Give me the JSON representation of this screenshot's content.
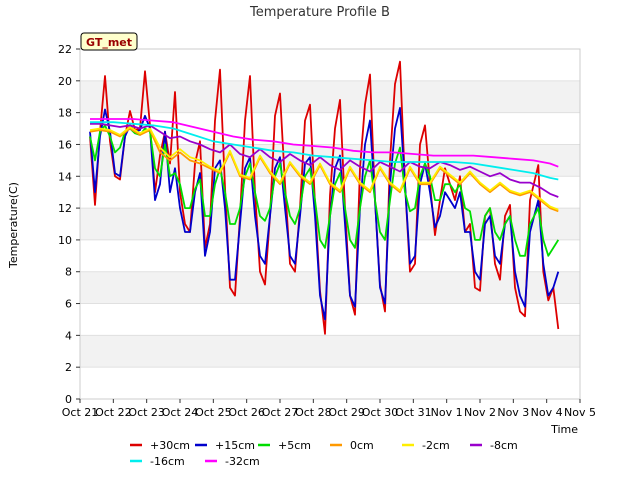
{
  "chart_data": {
    "type": "line",
    "title": "Temperature Profile B",
    "xlabel": "Time",
    "ylabel": "Temperature(C)",
    "site_tag": "GT_met",
    "xlim": [
      0,
      15
    ],
    "ylim": [
      0,
      22
    ],
    "x_ticks": [
      {
        "x": 0,
        "label": "Oct 21"
      },
      {
        "x": 1,
        "label": "Oct 22"
      },
      {
        "x": 2,
        "label": "Oct 23"
      },
      {
        "x": 3,
        "label": "Oct 24"
      },
      {
        "x": 4,
        "label": "Oct 25"
      },
      {
        "x": 5,
        "label": "Oct 26"
      },
      {
        "x": 6,
        "label": "Oct 27"
      },
      {
        "x": 7,
        "label": "Oct 28"
      },
      {
        "x": 8,
        "label": "Oct 29"
      },
      {
        "x": 9,
        "label": "Oct 30"
      },
      {
        "x": 10,
        "label": "Oct 31"
      },
      {
        "x": 11,
        "label": "Nov 1"
      },
      {
        "x": 12,
        "label": "Nov 2"
      },
      {
        "x": 13,
        "label": "Nov 3"
      },
      {
        "x": 14,
        "label": "Nov 4"
      },
      {
        "x": 15,
        "label": "Nov 5"
      }
    ],
    "y_ticks": [
      0,
      2,
      4,
      6,
      8,
      10,
      12,
      14,
      16,
      18,
      20,
      22
    ],
    "grid": "horizontal bands",
    "legend_position": "bottom",
    "x_units": "days since Oct 21",
    "series": [
      {
        "name": "+30cm",
        "color": "#dd0000",
        "x": [
          0.3,
          0.45,
          0.6,
          0.75,
          0.9,
          1.05,
          1.2,
          1.35,
          1.5,
          1.65,
          1.8,
          1.95,
          2.1,
          2.25,
          2.4,
          2.55,
          2.7,
          2.85,
          3.0,
          3.15,
          3.3,
          3.45,
          3.6,
          3.75,
          3.9,
          4.05,
          4.2,
          4.35,
          4.5,
          4.65,
          4.8,
          4.95,
          5.1,
          5.25,
          5.4,
          5.55,
          5.7,
          5.85,
          6.0,
          6.15,
          6.3,
          6.45,
          6.6,
          6.75,
          6.9,
          7.05,
          7.2,
          7.35,
          7.5,
          7.65,
          7.8,
          7.95,
          8.1,
          8.25,
          8.4,
          8.55,
          8.7,
          8.85,
          9.0,
          9.15,
          9.3,
          9.45,
          9.6,
          9.75,
          9.9,
          10.05,
          10.2,
          10.35,
          10.5,
          10.65,
          10.8,
          10.95,
          11.1,
          11.25,
          11.4,
          11.55,
          11.7,
          11.85,
          12.0,
          12.15,
          12.3,
          12.45,
          12.6,
          12.75,
          12.9,
          13.05,
          13.2,
          13.35,
          13.5,
          13.75,
          13.9,
          14.05,
          14.2,
          14.35
        ],
        "values": [
          16.5,
          12.2,
          16.8,
          20.3,
          16.2,
          14.0,
          13.8,
          16.5,
          18.1,
          16.9,
          17.0,
          20.6,
          17.2,
          13.0,
          15.3,
          16.8,
          14.8,
          19.3,
          13.0,
          11.0,
          10.5,
          14.8,
          16.2,
          9.5,
          11.0,
          17.5,
          20.7,
          13.3,
          7.0,
          6.5,
          11.5,
          17.5,
          20.3,
          13.0,
          8.0,
          7.2,
          11.5,
          17.8,
          19.2,
          13.5,
          8.5,
          8.0,
          12.0,
          17.5,
          18.5,
          12.3,
          6.8,
          4.1,
          12.8,
          17.0,
          18.8,
          12.0,
          6.5,
          5.3,
          14.5,
          18.5,
          20.4,
          12.5,
          7.2,
          5.5,
          15.0,
          19.8,
          21.2,
          13.5,
          8.0,
          8.5,
          16.0,
          17.2,
          13.5,
          10.3,
          12.5,
          14.5,
          13.5,
          12.5,
          14.0,
          10.5,
          11.0,
          7.0,
          6.8,
          11.5,
          12.0,
          8.5,
          7.5,
          11.5,
          12.2,
          7.0,
          5.5,
          5.2,
          12.5,
          14.7,
          8.0,
          6.2,
          7.0,
          4.4
        ]
      },
      {
        "name": "+15cm",
        "color": "#0000cc",
        "x": [
          0.3,
          0.45,
          0.6,
          0.75,
          0.9,
          1.05,
          1.2,
          1.35,
          1.5,
          1.65,
          1.8,
          1.95,
          2.1,
          2.25,
          2.4,
          2.55,
          2.7,
          2.85,
          3.0,
          3.15,
          3.3,
          3.45,
          3.6,
          3.75,
          3.9,
          4.05,
          4.2,
          4.35,
          4.5,
          4.65,
          4.8,
          4.95,
          5.1,
          5.25,
          5.4,
          5.55,
          5.7,
          5.85,
          6.0,
          6.15,
          6.3,
          6.45,
          6.6,
          6.75,
          6.9,
          7.05,
          7.2,
          7.35,
          7.5,
          7.65,
          7.8,
          7.95,
          8.1,
          8.25,
          8.4,
          8.55,
          8.7,
          8.85,
          9.0,
          9.15,
          9.3,
          9.45,
          9.6,
          9.75,
          9.9,
          10.05,
          10.2,
          10.35,
          10.5,
          10.65,
          10.8,
          10.95,
          11.1,
          11.25,
          11.4,
          11.55,
          11.7,
          11.85,
          12.0,
          12.15,
          12.3,
          12.45,
          12.6,
          12.75,
          12.9,
          13.05,
          13.2,
          13.35,
          13.5,
          13.75,
          13.9,
          14.05,
          14.2,
          14.35
        ],
        "values": [
          16.8,
          13.0,
          16.5,
          18.2,
          16.8,
          14.2,
          14.0,
          16.5,
          17.2,
          16.8,
          16.9,
          17.8,
          17.0,
          12.5,
          13.5,
          16.8,
          13.0,
          14.5,
          12.0,
          10.5,
          10.5,
          13.0,
          14.2,
          9.0,
          10.5,
          14.5,
          15.0,
          12.0,
          7.5,
          7.5,
          11.0,
          14.5,
          15.2,
          11.5,
          9.0,
          8.5,
          11.5,
          14.5,
          15.2,
          12.0,
          9.0,
          8.5,
          11.5,
          14.8,
          15.2,
          11.5,
          6.5,
          5.0,
          11.5,
          14.5,
          15.3,
          11.0,
          6.5,
          5.8,
          12.0,
          16.0,
          17.5,
          12.5,
          7.0,
          6.0,
          13.5,
          17.0,
          18.3,
          13.5,
          8.5,
          9.0,
          13.5,
          14.8,
          13.0,
          10.8,
          11.5,
          13.0,
          12.5,
          12.0,
          13.0,
          10.5,
          10.5,
          8.0,
          7.5,
          11.0,
          11.5,
          9.0,
          8.5,
          11.0,
          11.5,
          8.0,
          6.5,
          5.8,
          10.5,
          12.5,
          8.5,
          6.5,
          7.0,
          8.0
        ]
      },
      {
        "name": "+5cm",
        "color": "#00dd00",
        "x": [
          0.3,
          0.45,
          0.6,
          0.75,
          0.9,
          1.05,
          1.2,
          1.35,
          1.5,
          1.65,
          1.8,
          1.95,
          2.1,
          2.25,
          2.4,
          2.55,
          2.7,
          2.85,
          3.0,
          3.15,
          3.3,
          3.45,
          3.6,
          3.75,
          3.9,
          4.05,
          4.2,
          4.35,
          4.5,
          4.65,
          4.8,
          4.95,
          5.1,
          5.25,
          5.4,
          5.55,
          5.7,
          5.85,
          6.0,
          6.15,
          6.3,
          6.45,
          6.6,
          6.75,
          6.9,
          7.05,
          7.2,
          7.35,
          7.5,
          7.65,
          7.8,
          7.95,
          8.1,
          8.25,
          8.4,
          8.55,
          8.7,
          8.85,
          9.0,
          9.15,
          9.3,
          9.45,
          9.6,
          9.75,
          9.9,
          10.05,
          10.2,
          10.35,
          10.5,
          10.65,
          10.8,
          10.95,
          11.1,
          11.25,
          11.4,
          11.55,
          11.7,
          11.85,
          12.0,
          12.15,
          12.3,
          12.45,
          12.6,
          12.75,
          12.9,
          13.05,
          13.2,
          13.35,
          13.5,
          13.75,
          13.9,
          14.05,
          14.2,
          14.35
        ],
        "values": [
          16.5,
          15.0,
          16.8,
          17.2,
          16.5,
          15.5,
          15.8,
          16.8,
          17.0,
          16.7,
          16.6,
          17.0,
          16.8,
          14.5,
          14.0,
          16.0,
          14.0,
          14.2,
          13.5,
          12.0,
          12.0,
          13.2,
          13.8,
          11.5,
          11.5,
          13.5,
          14.5,
          13.0,
          11.0,
          11.0,
          12.0,
          14.0,
          14.8,
          13.0,
          11.5,
          11.2,
          12.0,
          14.0,
          14.8,
          13.0,
          11.5,
          11.0,
          12.0,
          14.0,
          14.5,
          12.5,
          10.0,
          9.5,
          11.5,
          13.5,
          14.2,
          12.0,
          10.0,
          9.5,
          12.0,
          14.0,
          15.0,
          12.5,
          10.5,
          10.0,
          12.5,
          14.8,
          15.8,
          13.0,
          11.8,
          12.0,
          14.0,
          14.8,
          14.0,
          12.5,
          12.5,
          13.5,
          13.5,
          13.0,
          13.5,
          12.0,
          11.8,
          10.0,
          10.0,
          11.5,
          12.0,
          10.5,
          10.0,
          11.0,
          11.5,
          10.0,
          9.0,
          9.0,
          11.0,
          12.0,
          10.0,
          9.0,
          9.5,
          10.0
        ]
      },
      {
        "name": "0cm",
        "color": "#ff9900",
        "x": [
          0.3,
          0.6,
          0.9,
          1.2,
          1.5,
          1.8,
          2.1,
          2.4,
          2.7,
          3.0,
          3.3,
          3.6,
          3.9,
          4.2,
          4.5,
          4.8,
          5.1,
          5.4,
          5.7,
          6.0,
          6.3,
          6.6,
          6.9,
          7.2,
          7.5,
          7.8,
          8.1,
          8.4,
          8.7,
          9.0,
          9.3,
          9.6,
          9.9,
          10.2,
          10.5,
          10.8,
          11.1,
          11.4,
          11.7,
          12.0,
          12.3,
          12.6,
          12.9,
          13.2,
          13.5,
          13.8,
          14.1,
          14.35
        ],
        "values": [
          16.8,
          16.9,
          16.8,
          16.5,
          17.0,
          16.6,
          16.9,
          15.5,
          15.0,
          15.5,
          15.0,
          14.8,
          14.5,
          14.2,
          15.5,
          14.0,
          13.8,
          15.2,
          14.2,
          13.5,
          14.8,
          14.0,
          13.5,
          14.7,
          13.5,
          13.0,
          14.5,
          13.5,
          13.0,
          14.5,
          13.5,
          13.0,
          14.5,
          13.5,
          13.5,
          14.5,
          14.0,
          13.5,
          14.2,
          13.5,
          13.0,
          13.5,
          13.0,
          12.8,
          13.0,
          12.5,
          12.0,
          11.8
        ]
      },
      {
        "name": "-2cm",
        "color": "#ffee00",
        "x": [
          0.3,
          0.6,
          0.9,
          1.2,
          1.5,
          1.8,
          2.1,
          2.4,
          2.7,
          3.0,
          3.3,
          3.6,
          3.9,
          4.2,
          4.5,
          4.8,
          5.1,
          5.4,
          5.7,
          6.0,
          6.3,
          6.6,
          6.9,
          7.2,
          7.5,
          7.8,
          8.1,
          8.4,
          8.7,
          9.0,
          9.3,
          9.6,
          9.9,
          10.2,
          10.5,
          10.8,
          11.1,
          11.4,
          11.7,
          12.0,
          12.3,
          12.6,
          12.9,
          13.2,
          13.5,
          13.8,
          14.1,
          14.35
        ],
        "values": [
          16.9,
          17.0,
          16.9,
          16.6,
          17.1,
          16.7,
          17.0,
          15.8,
          15.2,
          15.7,
          15.2,
          15.0,
          14.6,
          14.3,
          15.6,
          14.1,
          13.9,
          15.3,
          14.3,
          13.6,
          14.9,
          14.1,
          13.6,
          14.8,
          13.6,
          13.1,
          14.6,
          13.6,
          13.1,
          14.6,
          13.6,
          13.1,
          14.6,
          13.6,
          13.6,
          14.6,
          14.1,
          13.6,
          14.3,
          13.6,
          13.1,
          13.6,
          13.1,
          12.9,
          13.1,
          12.6,
          12.1,
          11.9
        ]
      },
      {
        "name": "-8cm",
        "color": "#9900cc",
        "x": [
          0.3,
          0.6,
          0.9,
          1.2,
          1.5,
          1.8,
          2.1,
          2.4,
          2.7,
          3.0,
          3.3,
          3.6,
          3.9,
          4.2,
          4.5,
          4.8,
          5.1,
          5.4,
          5.7,
          6.0,
          6.3,
          6.6,
          6.9,
          7.2,
          7.5,
          7.8,
          8.1,
          8.4,
          8.7,
          9.0,
          9.3,
          9.6,
          9.9,
          10.2,
          10.5,
          10.8,
          11.1,
          11.4,
          11.7,
          12.0,
          12.3,
          12.6,
          12.9,
          13.2,
          13.5,
          13.8,
          14.1,
          14.35
        ],
        "values": [
          17.3,
          17.3,
          17.2,
          17.1,
          17.2,
          17.0,
          17.2,
          16.8,
          16.4,
          16.5,
          16.2,
          16.0,
          15.7,
          15.5,
          16.0,
          15.4,
          15.2,
          15.7,
          15.2,
          14.9,
          15.4,
          15.0,
          14.7,
          15.2,
          14.7,
          14.4,
          15.0,
          14.6,
          14.3,
          14.9,
          14.6,
          14.3,
          14.9,
          14.6,
          14.5,
          14.9,
          14.7,
          14.4,
          14.6,
          14.3,
          14.0,
          14.2,
          13.8,
          13.6,
          13.6,
          13.3,
          12.9,
          12.7
        ]
      },
      {
        "name": "-16cm",
        "color": "#00eeee",
        "x": [
          0.3,
          1.0,
          1.6,
          2.2,
          2.8,
          3.4,
          4.0,
          4.6,
          5.2,
          5.8,
          6.4,
          7.0,
          7.6,
          8.2,
          8.8,
          9.4,
          10.0,
          10.6,
          11.2,
          11.8,
          12.4,
          13.0,
          13.6,
          14.1,
          14.35
        ],
        "values": [
          17.4,
          17.4,
          17.3,
          17.2,
          17.0,
          16.6,
          16.2,
          16.0,
          15.8,
          15.6,
          15.5,
          15.3,
          15.2,
          15.1,
          15.0,
          14.9,
          14.9,
          14.9,
          14.9,
          14.8,
          14.6,
          14.4,
          14.2,
          13.9,
          13.8
        ]
      },
      {
        "name": "-32cm",
        "color": "#ff00ff",
        "x": [
          0.3,
          1.0,
          1.6,
          2.2,
          2.8,
          3.4,
          4.0,
          4.6,
          5.2,
          5.8,
          6.4,
          7.0,
          7.6,
          8.2,
          8.8,
          9.4,
          10.0,
          10.6,
          11.2,
          11.8,
          12.4,
          13.0,
          13.6,
          14.1,
          14.35
        ],
        "values": [
          17.6,
          17.6,
          17.6,
          17.5,
          17.4,
          17.1,
          16.8,
          16.5,
          16.3,
          16.2,
          16.0,
          15.9,
          15.8,
          15.6,
          15.5,
          15.5,
          15.4,
          15.3,
          15.3,
          15.3,
          15.2,
          15.1,
          15.0,
          14.8,
          14.6
        ]
      }
    ]
  }
}
